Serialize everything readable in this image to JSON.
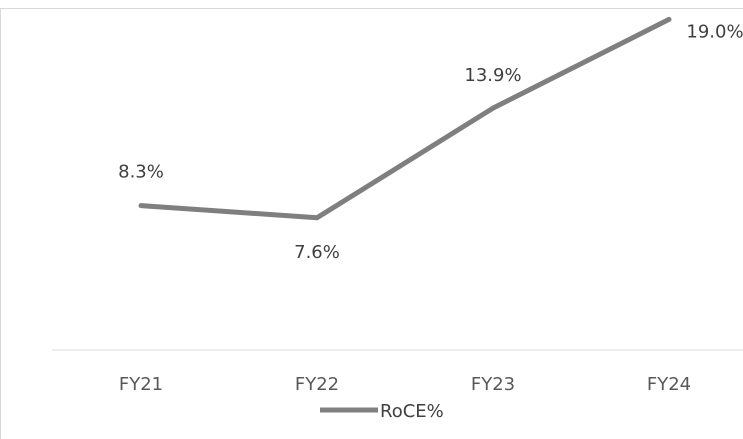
{
  "chart_data": {
    "type": "line",
    "categories": [
      "FY21",
      "FY22",
      "FY23",
      "FY24"
    ],
    "series": [
      {
        "name": "RoCE%",
        "values": [
          8.3,
          7.6,
          13.9,
          19.0
        ],
        "labels": [
          "8.3%",
          "7.6%",
          "13.9%",
          "19.0%"
        ],
        "color": "#7f7f7f"
      }
    ],
    "title": "",
    "xlabel": "",
    "ylabel": "",
    "ylim": [
      0,
      20
    ],
    "grid": false,
    "legend_position": "bottom",
    "colors": {
      "line": "#7f7f7f",
      "axis": "#d9d9d9",
      "frame": "#d9d9d9",
      "text": "#404040"
    }
  }
}
